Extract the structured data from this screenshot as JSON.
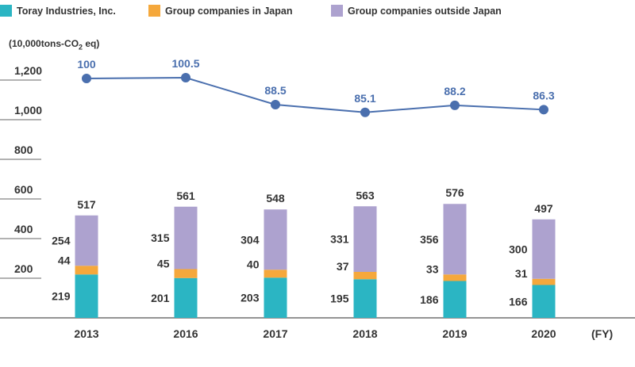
{
  "legend": [
    {
      "label": "Toray Industries, Inc.",
      "color": "#2bb5c3"
    },
    {
      "label": "Group companies in Japan",
      "color": "#f5a83c"
    },
    {
      "label": "Group companies outside Japan",
      "color": "#ada2cf"
    }
  ],
  "unit": {
    "prefix": "(10,000tons-CO",
    "sub": "2",
    "suffix": " eq)"
  },
  "chart_data": {
    "type": "bar",
    "stacked": true,
    "categories": [
      "2013",
      "2016",
      "2017",
      "2018",
      "2019",
      "2020"
    ],
    "x_unit_label": "(FY)",
    "yticks": [
      "200",
      "400",
      "600",
      "800",
      "1,000",
      "1,200"
    ],
    "ylim": [
      0,
      1250
    ],
    "series": [
      {
        "name": "Toray Industries, Inc.",
        "color": "#2bb5c3",
        "values": [
          219,
          201,
          203,
          195,
          186,
          166
        ]
      },
      {
        "name": "Group companies in Japan",
        "color": "#f5a83c",
        "values": [
          44,
          45,
          40,
          37,
          33,
          31
        ]
      },
      {
        "name": "Group companies outside Japan",
        "color": "#ada2cf",
        "values": [
          254,
          315,
          304,
          331,
          356,
          300
        ]
      }
    ],
    "totals": [
      517,
      561,
      548,
      563,
      576,
      497
    ],
    "index_line": {
      "color": "#4a6fae",
      "values": [
        100,
        100.5,
        88.5,
        85.1,
        88.2,
        86.3
      ],
      "labels": [
        "100",
        "100.5",
        "88.5",
        "85.1",
        "88.2",
        "86.3"
      ]
    }
  }
}
